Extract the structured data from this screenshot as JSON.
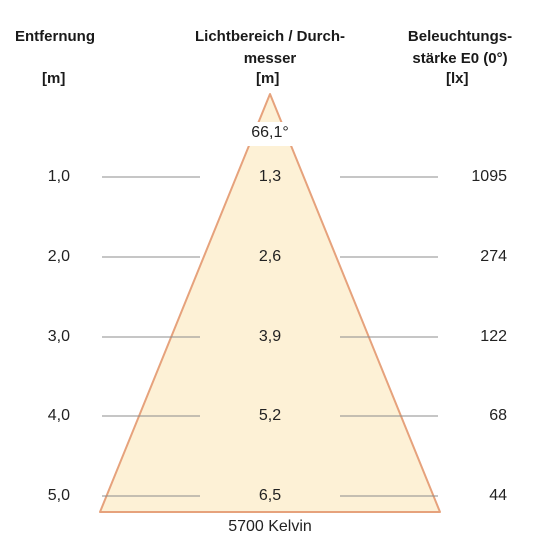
{
  "headers": {
    "distance": {
      "title": "Entfernung",
      "unit": "[m]"
    },
    "diameter": {
      "title_line1": "Lichtbereich / Durch-",
      "title_line2": "messer",
      "unit": "[m]"
    },
    "illuminance": {
      "title_line1": "Beleuchtungs-",
      "title_line2": "stärke E0 (0°)",
      "unit": "[lx]"
    }
  },
  "beam_angle": "66,1°",
  "color_temperature": "5700 Kelvin",
  "colors": {
    "cone_fill": "#fdf1d6",
    "cone_stroke": "#e6a27c",
    "guide_line": "#8c8c8c"
  },
  "rows": [
    {
      "distance": "1,0",
      "diameter": "1,3",
      "illuminance": "1095"
    },
    {
      "distance": "2,0",
      "diameter": "2,6",
      "illuminance": "274"
    },
    {
      "distance": "3,0",
      "diameter": "3,9",
      "illuminance": "122"
    },
    {
      "distance": "4,0",
      "diameter": "5,2",
      "illuminance": "68"
    },
    {
      "distance": "5,0",
      "diameter": "6,5",
      "illuminance": "44"
    }
  ]
}
